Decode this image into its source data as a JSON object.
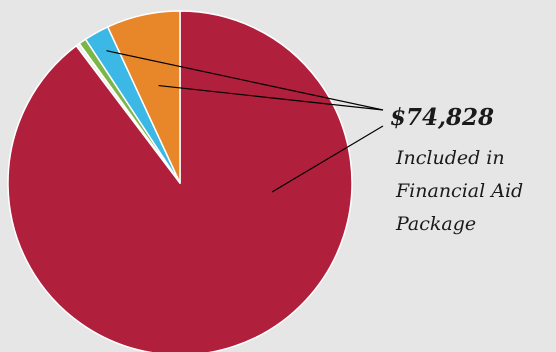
{
  "chart_data": {
    "type": "pie",
    "title": "",
    "slices": [
      {
        "value": 89.7,
        "color": "#b01f3c"
      },
      {
        "value": 0.35,
        "color": "#f0f0e8"
      },
      {
        "value": 0.7,
        "color": "#7ab648"
      },
      {
        "value": 2.35,
        "color": "#3bb8e6"
      },
      {
        "value": 6.9,
        "color": "#e8872a"
      }
    ],
    "start_angle_deg": -90,
    "slice_border_color": "#ffffff",
    "callout": {
      "amount": "$74,828",
      "lines": [
        "Included in",
        "Financial Aid",
        "Package"
      ],
      "line_color": "#000000"
    }
  }
}
